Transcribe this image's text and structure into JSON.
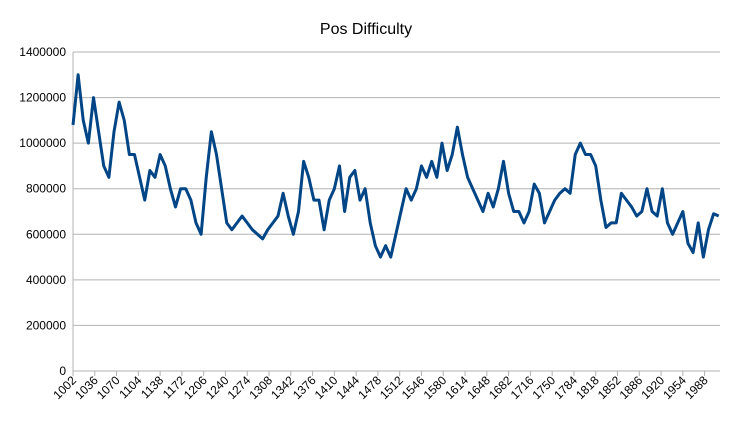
{
  "chart_data": {
    "type": "line",
    "title": "Pos Difficulty",
    "x": [
      1002,
      1010,
      1018,
      1026,
      1034,
      1042,
      1050,
      1058,
      1066,
      1074,
      1082,
      1090,
      1098,
      1106,
      1114,
      1122,
      1130,
      1138,
      1146,
      1154,
      1162,
      1170,
      1178,
      1186,
      1194,
      1202,
      1210,
      1218,
      1226,
      1234,
      1242,
      1250,
      1258,
      1266,
      1274,
      1282,
      1290,
      1298,
      1306,
      1314,
      1322,
      1330,
      1338,
      1346,
      1354,
      1362,
      1370,
      1378,
      1386,
      1394,
      1402,
      1410,
      1418,
      1426,
      1434,
      1442,
      1450,
      1458,
      1466,
      1474,
      1482,
      1490,
      1498,
      1506,
      1514,
      1522,
      1530,
      1538,
      1546,
      1554,
      1562,
      1570,
      1578,
      1586,
      1594,
      1602,
      1610,
      1618,
      1626,
      1634,
      1642,
      1650,
      1658,
      1666,
      1674,
      1682,
      1690,
      1698,
      1706,
      1714,
      1722,
      1730,
      1738,
      1746,
      1754,
      1762,
      1770,
      1778,
      1786,
      1794,
      1802,
      1810,
      1818,
      1826,
      1834,
      1842,
      1850,
      1858,
      1866,
      1874,
      1882,
      1890,
      1898,
      1906,
      1914,
      1922,
      1930,
      1938,
      1946,
      1954,
      1962,
      1970,
      1978,
      1986,
      1994,
      2002,
      2010
    ],
    "series": [
      {
        "name": "Pos Difficulty",
        "color": "#004586",
        "values": [
          1080000,
          1300000,
          1100000,
          1000000,
          1200000,
          1050000,
          900000,
          850000,
          1050000,
          1180000,
          1100000,
          950000,
          950000,
          850000,
          750000,
          880000,
          850000,
          950000,
          900000,
          800000,
          720000,
          800000,
          800000,
          750000,
          650000,
          600000,
          850000,
          1050000,
          950000,
          800000,
          650000,
          620000,
          650000,
          680000,
          650000,
          620000,
          600000,
          580000,
          620000,
          650000,
          680000,
          780000,
          680000,
          600000,
          700000,
          920000,
          850000,
          750000,
          750000,
          620000,
          750000,
          800000,
          900000,
          700000,
          850000,
          880000,
          750000,
          800000,
          650000,
          550000,
          500000,
          550000,
          500000,
          600000,
          700000,
          800000,
          750000,
          800000,
          900000,
          850000,
          920000,
          850000,
          1000000,
          880000,
          950000,
          1070000,
          950000,
          850000,
          800000,
          750000,
          700000,
          780000,
          720000,
          800000,
          920000,
          780000,
          700000,
          700000,
          650000,
          700000,
          820000,
          780000,
          650000,
          700000,
          750000,
          780000,
          800000,
          780000,
          950000,
          1000000,
          950000,
          950000,
          900000,
          750000,
          630000,
          650000,
          650000,
          780000,
          750000,
          720000,
          680000,
          700000,
          800000,
          700000,
          680000,
          800000,
          650000,
          600000,
          650000,
          700000,
          560000,
          520000,
          650000,
          500000,
          620000,
          690000,
          680000
        ]
      }
    ],
    "xlim": [
      1002,
      2012
    ],
    "xticks": [
      1002,
      1036,
      1070,
      1104,
      1138,
      1172,
      1206,
      1240,
      1274,
      1308,
      1342,
      1376,
      1410,
      1444,
      1478,
      1512,
      1546,
      1580,
      1614,
      1648,
      1682,
      1716,
      1750,
      1784,
      1818,
      1852,
      1886,
      1920,
      1954,
      1988
    ],
    "ylim": [
      0,
      1400000
    ],
    "yticks": [
      0,
      200000,
      400000,
      600000,
      800000,
      1000000,
      1200000,
      1400000
    ],
    "grid": true
  }
}
